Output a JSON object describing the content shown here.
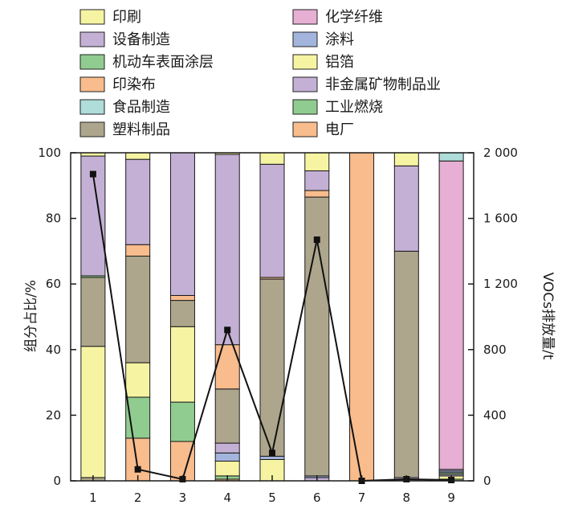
{
  "chart_data": {
    "type": "bar",
    "stacked": true,
    "categories": [
      "1",
      "2",
      "3",
      "4",
      "5",
      "6",
      "7",
      "8",
      "9"
    ],
    "ylabel": "组分占比/%",
    "ylim": [
      0,
      100
    ],
    "yticks": [
      "0",
      "20",
      "40",
      "60",
      "80",
      "100"
    ],
    "y2label": "VOCs排放量/t",
    "y2lim": [
      0,
      2000
    ],
    "y2ticks": [
      "0",
      "400",
      "800",
      "1 200",
      "1 600",
      "2 000"
    ],
    "legend_position": "top",
    "series": [
      {
        "name": "塑料制品",
        "color": "#ADA68C",
        "values": [
          0,
          0,
          0,
          0,
          0,
          0,
          0,
          0,
          0
        ]
      },
      {
        "name": "电厂",
        "color": "#F8BC8D",
        "values": [
          0,
          0,
          0,
          0,
          0,
          0,
          0,
          0,
          0
        ]
      },
      {
        "name": "工业燃烧",
        "color": "#90CC8F",
        "values": [
          0,
          0,
          0,
          0,
          0,
          0,
          0,
          0,
          0
        ]
      },
      {
        "name": "印刷",
        "color": "#F6F4A2",
        "values": [
          1,
          0,
          0,
          0,
          0,
          0,
          0,
          0,
          0
        ]
      },
      {
        "name": "铝箔",
        "color": "#F6F4A2",
        "values": [
          0,
          0,
          0,
          0,
          0,
          0,
          0,
          0,
          0
        ]
      },
      {
        "name": "非金属矿物制品业",
        "color": "#C4B0D5",
        "values": [
          0,
          0,
          0,
          0,
          0,
          0,
          0,
          0,
          0
        ]
      },
      {
        "name": "设备制造",
        "color": "#C4B0D5",
        "values": [
          0,
          0,
          0,
          0,
          0,
          0,
          0,
          0,
          0
        ]
      },
      {
        "name": "涂料",
        "color": "#A3B5DD",
        "values": [
          0,
          0,
          0,
          0,
          0,
          0,
          0,
          0,
          0
        ]
      },
      {
        "name": "机动车表面涂层",
        "color": "#90CC8F",
        "values": [
          0,
          0,
          0,
          0,
          0,
          0,
          0,
          0,
          0
        ]
      },
      {
        "name": "印染布",
        "color": "#F8BC8D",
        "values": [
          0,
          0,
          0,
          0,
          0,
          0,
          0,
          0,
          0
        ]
      },
      {
        "name": "食品制造",
        "color": "#AEDDDA",
        "values": [
          0,
          0,
          0,
          0,
          0,
          0,
          0,
          0,
          0
        ]
      },
      {
        "name": "化学纤维",
        "color": "#E6AFD3",
        "values": [
          0,
          0,
          0,
          0,
          0,
          0,
          0,
          0,
          0
        ]
      }
    ],
    "bars": [
      [
        {
          "series": "塑料制品",
          "value": 1
        },
        {
          "series": "印刷",
          "value": 40
        },
        {
          "series": "塑料制品",
          "value": 21
        },
        {
          "series": "机动车表面涂层",
          "value": 0.5
        },
        {
          "series": "设备制造",
          "value": 36.5
        },
        {
          "series": "印刷",
          "value": 1
        }
      ],
      [
        {
          "series": "印染布",
          "value": 13
        },
        {
          "series": "机动车表面涂层",
          "value": 12.5
        },
        {
          "series": "印刷",
          "value": 10.5
        },
        {
          "series": "塑料制品",
          "value": 32.5
        },
        {
          "series": "印染布",
          "value": 3.5
        },
        {
          "series": "设备制造",
          "value": 26
        },
        {
          "series": "印刷",
          "value": 2
        }
      ],
      [
        {
          "series": "印染布",
          "value": 12
        },
        {
          "series": "机动车表面涂层",
          "value": 12
        },
        {
          "series": "印刷",
          "value": 23
        },
        {
          "series": "塑料制品",
          "value": 8
        },
        {
          "series": "印染布",
          "value": 1.5
        },
        {
          "series": "设备制造",
          "value": 43.5
        }
      ],
      [
        {
          "series": "电厂",
          "value": 0.5
        },
        {
          "series": "工业燃烧",
          "value": 1
        },
        {
          "series": "铝箔",
          "value": 4.5
        },
        {
          "series": "涂料",
          "value": 2.5
        },
        {
          "series": "非金属矿物制品业",
          "value": 3
        },
        {
          "series": "塑料制品",
          "value": 16.5
        },
        {
          "series": "印染布",
          "value": 13.5
        },
        {
          "series": "设备制造",
          "value": 58
        },
        {
          "series": "印刷",
          "value": 0.5
        }
      ],
      [
        {
          "series": "印刷",
          "value": 6.5
        },
        {
          "series": "涂料",
          "value": 1
        },
        {
          "series": "塑料制品",
          "value": 54
        },
        {
          "series": "印染布",
          "value": 0.5
        },
        {
          "series": "设备制造",
          "value": 34.5
        },
        {
          "series": "印刷",
          "value": 3.5
        }
      ],
      [
        {
          "series": "非金属矿物制品业",
          "value": 1
        },
        {
          "series": "涂料",
          "value": 0.5
        },
        {
          "series": "塑料制品",
          "value": 85
        },
        {
          "series": "印染布",
          "value": 2
        },
        {
          "series": "设备制造",
          "value": 6
        },
        {
          "series": "印刷",
          "value": 5.5
        }
      ],
      [
        {
          "series": "电厂",
          "value": 100
        }
      ],
      [
        {
          "series": "塑料制品",
          "value": 0.5
        },
        {
          "series": "非金属矿物制品业",
          "value": 0.5
        },
        {
          "series": "塑料制品",
          "value": 69
        },
        {
          "series": "设备制造",
          "value": 26
        },
        {
          "series": "印刷",
          "value": 4
        }
      ],
      [
        {
          "series": "工业燃烧",
          "value": 0.5
        },
        {
          "series": "铝箔",
          "value": 1
        },
        {
          "series": "非金属矿物制品业",
          "value": 0.5
        },
        {
          "series": "工业燃烧",
          "value": 0.5
        },
        {
          "series": "涂料",
          "value": 0.5
        },
        {
          "series": "非金属矿物制品业",
          "value": 0.5
        },
        {
          "series": "化学纤维",
          "value": 94
        },
        {
          "series": "食品制造",
          "value": 2.5
        }
      ]
    ],
    "line": {
      "axis": "right",
      "marker": "square",
      "color": "#111111",
      "values": [
        1870,
        70,
        10,
        920,
        170,
        1470,
        0,
        10,
        5
      ]
    },
    "legend": {
      "columns": [
        [
          "印刷",
          "设备制造",
          "机动车表面涂层",
          "印染布",
          "食品制造",
          "塑料制品"
        ],
        [
          "化学纤维",
          "涂料",
          "铝箔",
          "非金属矿物制品业",
          "工业燃烧",
          "电厂"
        ]
      ]
    }
  }
}
